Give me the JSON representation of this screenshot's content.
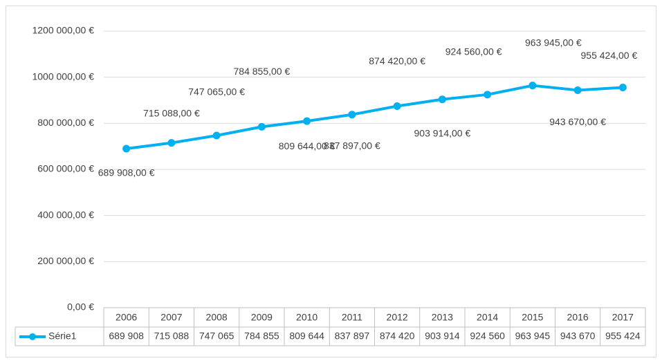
{
  "chart_data": {
    "type": "line",
    "categories": [
      "2006",
      "2007",
      "2008",
      "2009",
      "2010",
      "2011",
      "2012",
      "2013",
      "2014",
      "2015",
      "2016",
      "2017"
    ],
    "series": [
      {
        "name": "Série1",
        "color": "#00b0f0",
        "values": [
          689908,
          715088,
          747065,
          784855,
          809644,
          837897,
          874420,
          903914,
          924560,
          963945,
          943670,
          955424
        ],
        "value_labels": [
          "689 908,00 €",
          "715 088,00 €",
          "747 065,00 €",
          "784 855,00 €",
          "809 644,00 €",
          "837 897,00 €",
          "874 420,00 €",
          "903 914,00 €",
          "924 560,00 €",
          "963 945,00 €",
          "943 670,00 €",
          "955 424,00 €"
        ],
        "table_labels": [
          "689 908",
          "715 088",
          "747 065",
          "784 855",
          "809 644",
          "837 897",
          "874 420",
          "903 914",
          "924 560",
          "963 945",
          "943 670",
          "955 424"
        ]
      }
    ],
    "ylim": [
      0,
      1200000
    ],
    "yticks": [
      {
        "value": 0,
        "label": "0,00 €"
      },
      {
        "value": 200000,
        "label": "200 000,00 €"
      },
      {
        "value": 400000,
        "label": "400 000,00 €"
      },
      {
        "value": 600000,
        "label": "600 000,00 €"
      },
      {
        "value": 800000,
        "label": "800 000,00 €"
      },
      {
        "value": 1000000,
        "label": "1000 000,00 €"
      },
      {
        "value": 1200000,
        "label": "1200 000,00 €"
      }
    ],
    "grid": true,
    "data_table": true
  }
}
